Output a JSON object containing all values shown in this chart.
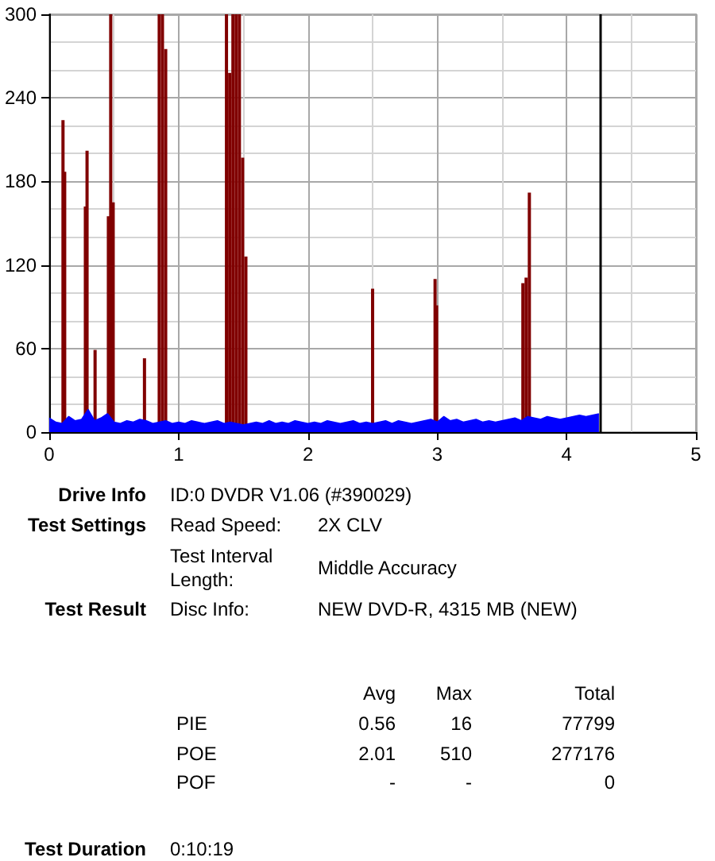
{
  "chart_data": {
    "type": "bar",
    "xlim": [
      0,
      5
    ],
    "xticks": [
      0,
      1,
      2,
      3,
      4,
      5
    ],
    "ylim": [
      0,
      300
    ],
    "yticks": [
      0,
      60,
      120,
      180,
      240,
      300
    ],
    "grid": true,
    "ref_lines": [
      {
        "axis": "x",
        "value": 4.26,
        "color": "#000000"
      }
    ],
    "series": [
      {
        "color": "#800000",
        "x": [
          0.106,
          0.119,
          0.279,
          0.292,
          0.354,
          0.457,
          0.475,
          0.494,
          0.736,
          0.85,
          0.875,
          0.9,
          1.37,
          1.395,
          1.42,
          1.445,
          1.47,
          1.495,
          1.52,
          2.5,
          2.983,
          2.995,
          3.662,
          3.687,
          3.712
        ],
        "values": [
          224,
          187,
          162,
          202,
          59,
          155,
          300,
          165,
          53,
          300,
          300,
          275,
          300,
          258,
          300,
          300,
          300,
          197,
          126,
          103,
          110,
          91,
          107,
          111,
          172
        ]
      },
      {
        "type": "area",
        "color": "#0000ff",
        "x": [
          0,
          0.05,
          0.1,
          0.15,
          0.2,
          0.25,
          0.3,
          0.35,
          0.4,
          0.45,
          0.5,
          0.55,
          0.6,
          0.65,
          0.7,
          0.75,
          0.8,
          0.85,
          0.9,
          0.95,
          1.0,
          1.05,
          1.1,
          1.15,
          1.2,
          1.25,
          1.3,
          1.35,
          1.4,
          1.45,
          1.5,
          1.55,
          1.6,
          1.65,
          1.7,
          1.75,
          1.8,
          1.85,
          1.9,
          1.95,
          2.0,
          2.05,
          2.1,
          2.15,
          2.2,
          2.25,
          2.3,
          2.35,
          2.4,
          2.45,
          2.5,
          2.55,
          2.6,
          2.65,
          2.7,
          2.75,
          2.8,
          2.85,
          2.9,
          2.95,
          3.0,
          3.05,
          3.1,
          3.15,
          3.2,
          3.25,
          3.3,
          3.35,
          3.4,
          3.45,
          3.5,
          3.55,
          3.6,
          3.65,
          3.7,
          3.75,
          3.8,
          3.85,
          3.9,
          3.95,
          4.0,
          4.05,
          4.1,
          4.15,
          4.2,
          4.25
        ],
        "values": [
          10,
          7,
          6,
          11,
          8,
          9,
          16,
          8,
          10,
          13,
          7,
          6,
          8,
          7,
          9,
          8,
          6,
          7,
          8,
          6,
          7,
          6,
          8,
          7,
          6,
          7,
          8,
          6,
          7,
          6,
          5,
          6,
          7,
          6,
          8,
          6,
          7,
          6,
          8,
          7,
          6,
          7,
          6,
          8,
          7,
          6,
          7,
          8,
          6,
          7,
          6,
          7,
          8,
          6,
          8,
          7,
          6,
          7,
          8,
          9,
          7,
          11,
          8,
          9,
          7,
          8,
          9,
          7,
          8,
          7,
          8,
          9,
          10,
          8,
          11,
          10,
          9,
          11,
          10,
          9,
          10,
          11,
          12,
          11,
          12,
          13
        ]
      }
    ],
    "annotations": [
      "Drive Info",
      "ID:0 DVDR V1.06 (#390029)",
      "Test Settings",
      "Read Speed:",
      "2X CLV",
      "Test Interval Length:",
      "Middle Accuracy",
      "Test Result",
      "Disc Info:",
      "NEW DVD-R, 4315 MB (NEW)",
      "Avg",
      "Max",
      "Total",
      "PIE",
      "0.56",
      "16",
      "77799",
      "POE",
      "2.01",
      "510",
      "277176",
      "POF",
      "-",
      "-",
      "0",
      "Test Duration",
      "0:10:19"
    ]
  }
}
